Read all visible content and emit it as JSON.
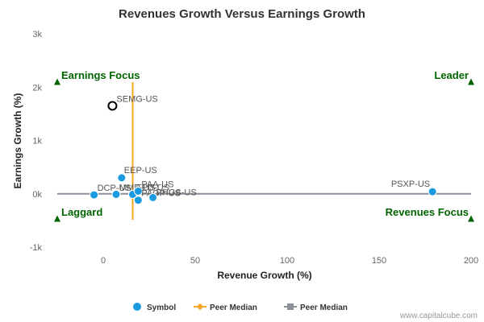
{
  "chart_data": {
    "type": "scatter",
    "title": "Revenues Growth Versus Earnings Growth",
    "xlabel": "Revenue Growth (%)",
    "ylabel": "Earnings Growth (%)",
    "xlim": [
      -25,
      200
    ],
    "ylim": [
      -1000,
      3000
    ],
    "x_ticks": [
      {
        "value": 0,
        "label": "0"
      },
      {
        "value": 50,
        "label": "50"
      },
      {
        "value": 100,
        "label": "100"
      },
      {
        "value": 150,
        "label": "150"
      },
      {
        "value": 200,
        "label": "200"
      }
    ],
    "y_ticks": [
      {
        "value": 3000,
        "label": "3k"
      },
      {
        "value": 2000,
        "label": "2k"
      },
      {
        "value": 1000,
        "label": "1k"
      },
      {
        "value": 0,
        "label": "0k"
      },
      {
        "value": -1000,
        "label": "-1k"
      }
    ],
    "grid": false,
    "points": [
      {
        "label": "SEMG-US",
        "x": 5,
        "y": 1650,
        "highlight": true
      },
      {
        "label": "EEP-US",
        "x": 10,
        "y": 300
      },
      {
        "label": "DCP-US",
        "x": -5,
        "y": -20
      },
      {
        "label": "MMP-US",
        "x": 7,
        "y": -10
      },
      {
        "label": "EPD-US",
        "x": 16,
        "y": -10
      },
      {
        "label": "PAA-US",
        "x": 19,
        "y": 50
      },
      {
        "label": "PAGP-US",
        "x": 19,
        "y": -120
      },
      {
        "label": "PHGS-US",
        "x": 27,
        "y": -70
      },
      {
        "label": "PSXP-US",
        "x": 179,
        "y": 40
      }
    ],
    "peer_median": {
      "x": 16,
      "y": 0
    },
    "quadrants": {
      "top_left": "Earnings Focus",
      "top_right": "Leader",
      "bottom_left": "Laggard",
      "bottom_right": "Revenues Focus"
    },
    "legend": {
      "position": "bottom-center",
      "items": [
        {
          "label": "Symbol",
          "type": "symbol"
        },
        {
          "label": "Peer Median",
          "type": "x-median"
        },
        {
          "label": "Peer Median",
          "type": "y-median"
        }
      ]
    },
    "colors": {
      "points": "#1a9be0",
      "highlight": "#000000",
      "x_median": "#f5a623",
      "y_median": "#8a8f99",
      "quadrant": "#006400"
    }
  },
  "credit": "www.capitalcube.com"
}
